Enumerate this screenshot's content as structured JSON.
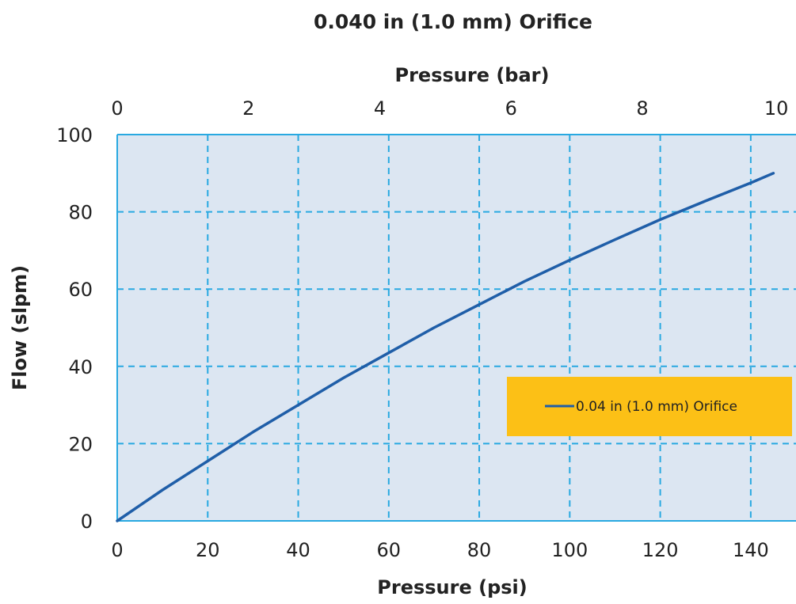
{
  "chart_data": {
    "type": "line",
    "title": "0.040 in (1.0 mm) Orifice",
    "xlabel": "Pressure (psi)",
    "x2label": "Pressure (bar)",
    "ylabel": "Flow (slpm)",
    "xlim": [
      0,
      150
    ],
    "x2lim": [
      0,
      10.34
    ],
    "ylim": [
      0,
      100
    ],
    "xticks": [
      "0",
      "20",
      "40",
      "60",
      "80",
      "100",
      "120",
      "140"
    ],
    "x2ticks": [
      "0",
      "2",
      "4",
      "6",
      "8",
      "10"
    ],
    "yticks": [
      "0",
      "20",
      "40",
      "60",
      "80",
      "100"
    ],
    "grid": true,
    "legend_position": "right",
    "series": [
      {
        "name": "0.04 in (1.0 mm) Orifice",
        "color": "#1f5ea8",
        "x": [
          0,
          10,
          20,
          30,
          40,
          50,
          60,
          70,
          80,
          90,
          100,
          110,
          120,
          130,
          140,
          145
        ],
        "y": [
          0,
          8,
          15.5,
          23,
          30,
          37,
          43.5,
          50,
          56,
          62,
          67.5,
          72.8,
          78,
          82.8,
          87.5,
          90
        ]
      }
    ],
    "colors": {
      "plot_background": "#dce6f2",
      "grid": "#29a9e1",
      "legend_background": "#fcc016"
    }
  }
}
